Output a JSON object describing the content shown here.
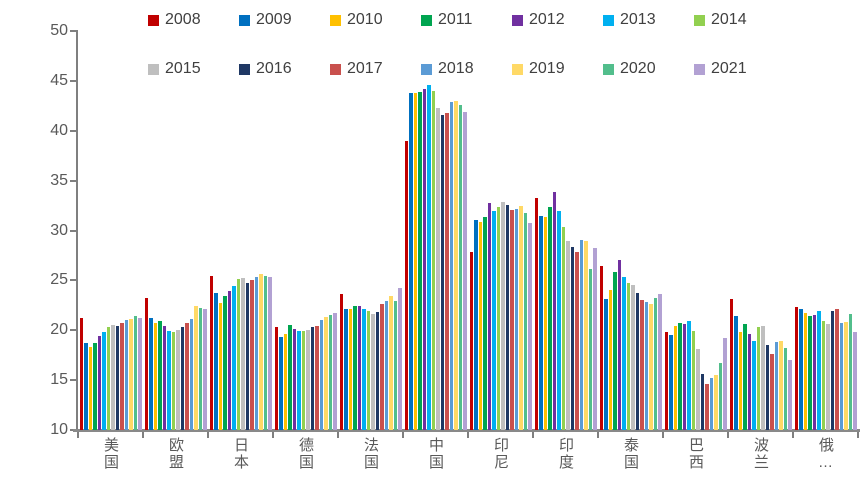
{
  "chart": {
    "background": "#FFFFFF",
    "axis_color": "#7F7F7F",
    "tick_label_color": "#595959",
    "legend_text_color": "#404040",
    "y_tick_labels": [
      "50",
      "45",
      "40",
      "35",
      "30",
      "25",
      "20",
      "15",
      "10"
    ]
  },
  "chart_data": {
    "type": "bar",
    "title": "",
    "xlabel": "",
    "ylabel": "",
    "ylim": [
      10,
      50
    ],
    "ytick_step": 5,
    "grid": false,
    "legend_position": "top-two-rows",
    "categories": [
      "美国",
      "欧盟",
      "日本",
      "德国",
      "法国",
      "中国",
      "印尼",
      "印度",
      "泰国",
      "巴西",
      "波兰",
      "俄…"
    ],
    "series": [
      {
        "name": "2008",
        "color": "#C00000",
        "values": [
          21.2,
          23.2,
          25.4,
          20.3,
          23.6,
          39.0,
          27.8,
          33.3,
          26.4,
          19.8,
          23.1,
          22.3
        ]
      },
      {
        "name": "2009",
        "color": "#0070C0",
        "values": [
          18.7,
          21.2,
          23.7,
          19.3,
          22.1,
          43.8,
          31.1,
          31.5,
          23.1,
          19.5,
          21.4,
          22.1
        ]
      },
      {
        "name": "2010",
        "color": "#FFC000",
        "values": [
          18.3,
          20.7,
          22.7,
          19.6,
          22.1,
          43.8,
          30.9,
          31.4,
          24.0,
          20.4,
          19.8,
          21.7
        ]
      },
      {
        "name": "2011",
        "color": "#00A550",
        "values": [
          18.7,
          20.9,
          23.4,
          20.5,
          22.4,
          43.9,
          31.4,
          32.4,
          25.8,
          20.7,
          20.6,
          21.4
        ]
      },
      {
        "name": "2012",
        "color": "#7030A0",
        "values": [
          19.4,
          20.4,
          23.9,
          20.1,
          22.4,
          44.2,
          32.8,
          33.9,
          27.0,
          20.6,
          19.6,
          21.5
        ]
      },
      {
        "name": "2013",
        "color": "#00B0F0",
        "values": [
          19.8,
          19.9,
          24.4,
          19.9,
          22.1,
          44.6,
          32.0,
          32.0,
          25.3,
          20.9,
          18.9,
          21.9
        ]
      },
      {
        "name": "2014",
        "color": "#92D050",
        "values": [
          20.3,
          19.8,
          25.1,
          19.9,
          21.9,
          44.0,
          32.4,
          30.4,
          24.7,
          19.9,
          20.3,
          20.9
        ]
      },
      {
        "name": "2015",
        "color": "#BFBFBF",
        "values": [
          20.5,
          20.0,
          25.2,
          20.0,
          21.6,
          42.3,
          32.9,
          29.0,
          24.5,
          18.1,
          20.4,
          20.6
        ]
      },
      {
        "name": "2016",
        "color": "#1F3864",
        "values": [
          20.4,
          20.3,
          24.7,
          20.3,
          21.8,
          41.6,
          32.6,
          28.4,
          23.7,
          15.6,
          18.5,
          21.9
        ]
      },
      {
        "name": "2017",
        "color": "#C9504D",
        "values": [
          20.7,
          20.7,
          25.0,
          20.4,
          22.6,
          41.8,
          32.1,
          27.8,
          23.0,
          14.6,
          17.6,
          22.1
        ]
      },
      {
        "name": "2018",
        "color": "#5B9BD5",
        "values": [
          21.0,
          21.1,
          25.3,
          21.0,
          22.9,
          42.9,
          32.2,
          29.1,
          22.8,
          15.2,
          18.8,
          20.7
        ]
      },
      {
        "name": "2019",
        "color": "#FFD966",
        "values": [
          21.1,
          22.4,
          25.6,
          21.3,
          23.4,
          43.0,
          32.5,
          29.0,
          22.6,
          15.5,
          18.9,
          20.8
        ]
      },
      {
        "name": "2020",
        "color": "#52BE8C",
        "values": [
          21.4,
          22.2,
          25.4,
          21.5,
          22.9,
          42.6,
          31.8,
          26.1,
          23.2,
          16.7,
          18.2,
          21.6
        ]
      },
      {
        "name": "2021",
        "color": "#B2A1D3",
        "values": [
          21.2,
          22.1,
          25.3,
          21.7,
          24.2,
          41.9,
          30.8,
          28.3,
          23.6,
          19.2,
          17.0,
          19.8
        ]
      }
    ]
  }
}
